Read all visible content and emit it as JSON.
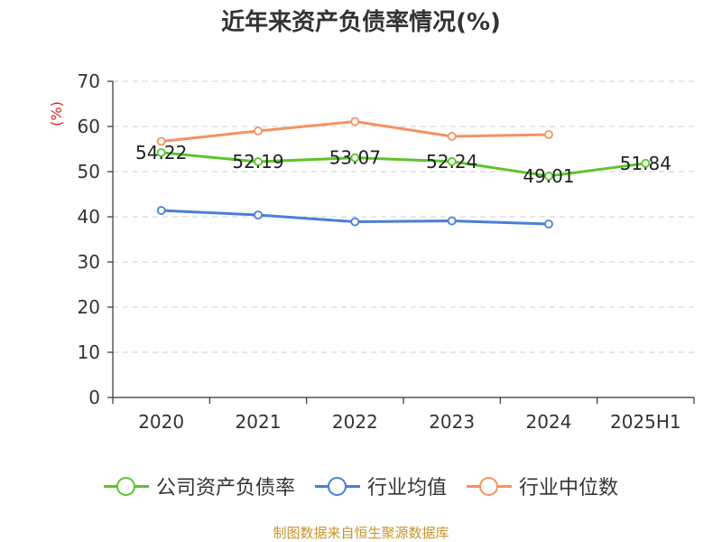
{
  "chart_data": {
    "type": "line",
    "title": "近年来资产负债率情况(%)",
    "ylabel": "(%)",
    "categories": [
      "2020",
      "2021",
      "2022",
      "2023",
      "2024",
      "2025H1"
    ],
    "ylim": [
      0,
      70
    ],
    "yticks": [
      0,
      10,
      20,
      30,
      40,
      50,
      60,
      70
    ],
    "grid": true,
    "legend_position": "bottom",
    "series": [
      {
        "name": "公司资产负债率",
        "color": "#5cc52a",
        "values": [
          54.22,
          52.19,
          53.07,
          52.24,
          49.01,
          51.84
        ],
        "labeled": true
      },
      {
        "name": "行业均值",
        "color": "#4a7fd6",
        "values": [
          41.4,
          40.4,
          38.9,
          39.1,
          38.4,
          null
        ],
        "labeled": false
      },
      {
        "name": "行业中位数",
        "color": "#f39263",
        "values": [
          56.7,
          59.0,
          61.1,
          57.8,
          58.2,
          null
        ],
        "labeled": false
      }
    ],
    "data_labels": [
      "54.22",
      "52.19",
      "53.07",
      "52.24",
      "49.01",
      "51.84"
    ]
  },
  "footer": {
    "source": "制图数据来自恒生聚源数据库"
  }
}
